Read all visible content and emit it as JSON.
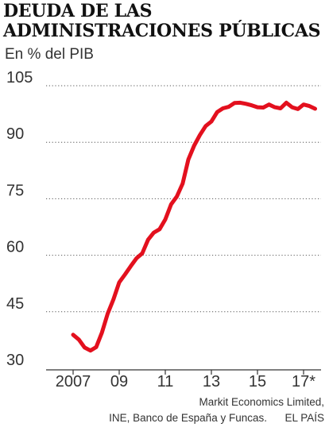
{
  "title_lines": [
    "DEUDA DE LAS",
    "ADMINISTRACIONES PÚBLICAS"
  ],
  "subtitle": "En % del PIB",
  "source_lines": [
    "Markit Economics Limited,",
    "INE, Banco de España y Funcas.      EL PAÍS"
  ],
  "colors": {
    "line": "#e3101e",
    "grid": "#555555",
    "axis": "#333333",
    "text": "#333333"
  },
  "chart_data": {
    "type": "line",
    "title": "DEUDA DE LAS ADMINISTRACIONES PÚBLICAS",
    "subtitle": "En % del PIB",
    "xlabel": "",
    "ylabel": "",
    "ylim": [
      30,
      105
    ],
    "xlim": [
      2006.75,
      2017.75
    ],
    "grid": "horizontal dotted",
    "yticks": [
      105,
      90,
      75,
      60,
      45,
      30
    ],
    "ytick_labels": [
      "105",
      "90",
      "75",
      "60",
      "45",
      "30"
    ],
    "xticks": [
      2007,
      2009,
      2011,
      2013,
      2015,
      2017
    ],
    "xtick_labels": [
      "2007",
      "09",
      "11",
      "13",
      "15",
      "17*"
    ],
    "series": [
      {
        "x": [
          2007.0,
          2007.25,
          2007.5,
          2007.75,
          2008.0,
          2008.25,
          2008.5,
          2008.75,
          2009.0,
          2009.25,
          2009.5,
          2009.75,
          2010.0,
          2010.25,
          2010.5,
          2010.75,
          2011.0,
          2011.25,
          2011.5,
          2011.75,
          2012.0,
          2012.25,
          2012.5,
          2012.75,
          2013.0,
          2013.25,
          2013.5,
          2013.75,
          2014.0,
          2014.25,
          2014.5,
          2014.75,
          2015.0,
          2015.25,
          2015.5,
          2015.75,
          2016.0,
          2016.25,
          2016.5,
          2016.75,
          2017.0,
          2017.25,
          2017.5
        ],
        "values": [
          38.9,
          37.6,
          35.5,
          34.7,
          35.6,
          39.5,
          44.5,
          48.3,
          52.8,
          54.9,
          57.1,
          59.2,
          60.5,
          64.1,
          66.0,
          66.9,
          69.5,
          73.5,
          75.6,
          79.0,
          85.4,
          89.1,
          91.9,
          94.3,
          95.5,
          98.0,
          99.0,
          99.4,
          100.4,
          100.5,
          100.2,
          99.8,
          99.3,
          99.2,
          100.0,
          99.3,
          99.0,
          100.5,
          99.3,
          98.8,
          100.0,
          99.6,
          98.9
        ]
      }
    ]
  }
}
